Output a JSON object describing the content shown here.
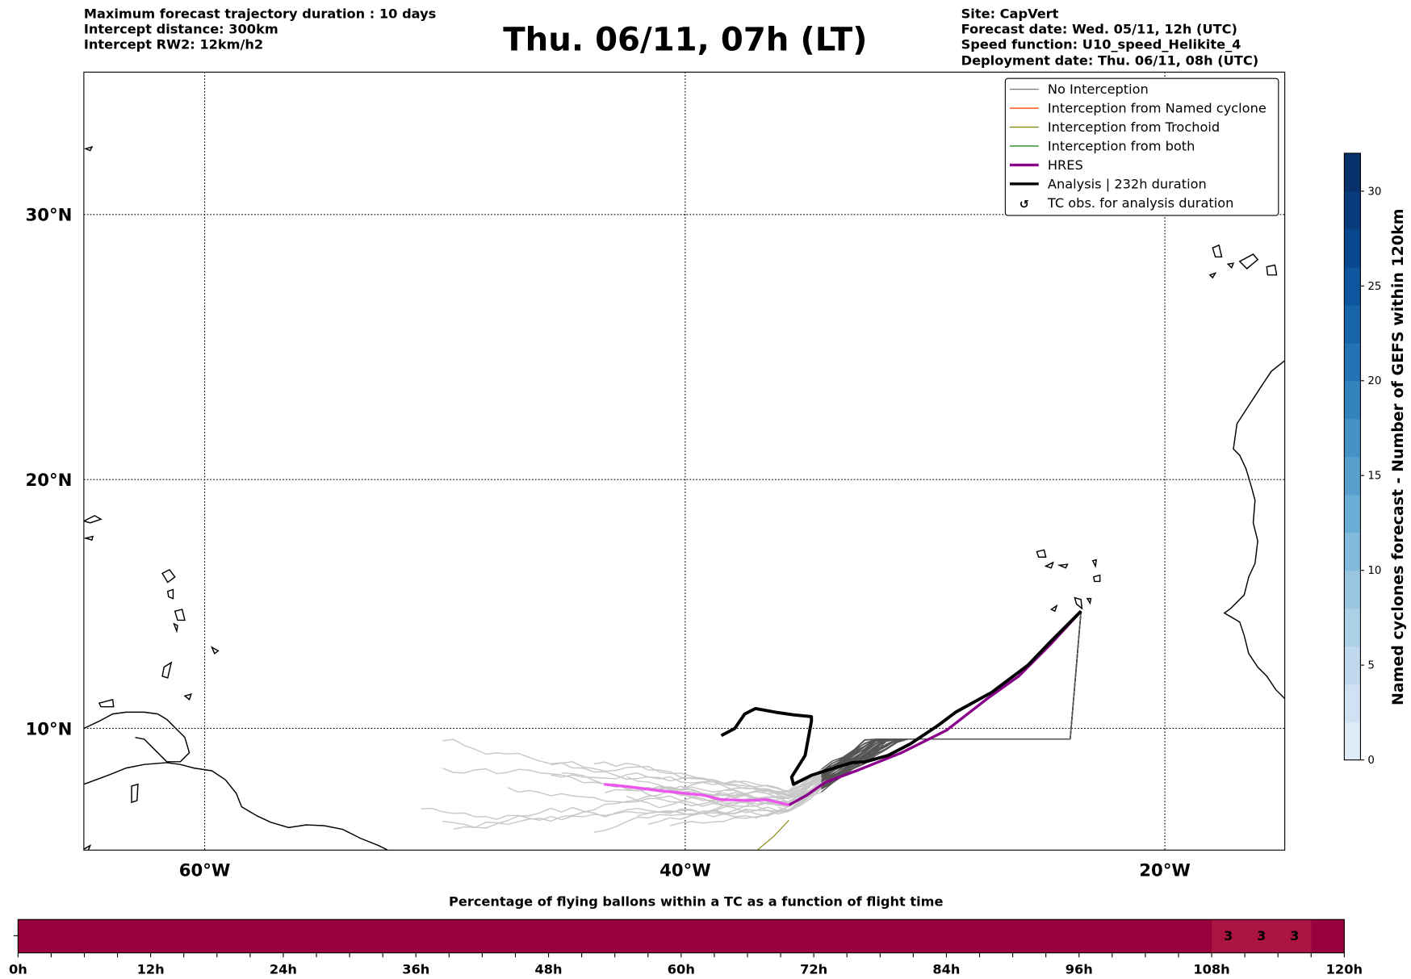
{
  "header": {
    "left_lines": [
      "Maximum forecast trajectory duration : 10 days",
      "Intercept distance: 300km",
      "Intercept RW2: 12km/h2"
    ],
    "title": "Thu. 06/11, 07h (LT)",
    "right_lines": [
      "Site: CapVert",
      "Forecast date: Wed. 05/11, 12h (UTC)",
      "Speed function: U10_speed_Helikite_4",
      "Deployment date: Thu. 06/11, 08h (UTC)"
    ]
  },
  "map": {
    "lat_labels": [
      "30°N",
      "20°N",
      "10°N"
    ],
    "lon_labels": [
      "60°W",
      "40°W",
      "20°W"
    ]
  },
  "legend": {
    "items": [
      {
        "label": "No Interception",
        "color": "#808080"
      },
      {
        "label": "Interception from Named cyclone",
        "color": "#ff4500"
      },
      {
        "label": "Interception from Trochoid",
        "color": "#808000"
      },
      {
        "label": "Interception from both",
        "color": "#228b22"
      },
      {
        "label": "HRES",
        "color": "#8b008b"
      },
      {
        "label": "Analysis | 232h duration",
        "color": "#000000"
      },
      {
        "label": "TC obs. for analysis duration",
        "icon": "cyclone-symbol-icon"
      }
    ]
  },
  "colorbar": {
    "label": "Named cyclones forecast - Number of GEFS within 120km",
    "ticks": [
      "0",
      "5",
      "10",
      "15",
      "20",
      "25",
      "30"
    ],
    "min": 0,
    "max": 32
  },
  "timebar": {
    "title": "Percentage of flying ballons within a TC as a function of flight time",
    "ticks": [
      "0h",
      "12h",
      "24h",
      "36h",
      "48h",
      "60h",
      "72h",
      "84h",
      "96h",
      "108h",
      "120h"
    ],
    "base_color": "#9b003e",
    "highlight_color": "#ab1342",
    "cells": [
      {
        "start_h": 108,
        "value": "3"
      },
      {
        "start_h": 111,
        "value": "3"
      },
      {
        "start_h": 114,
        "value": "3"
      }
    ]
  }
}
